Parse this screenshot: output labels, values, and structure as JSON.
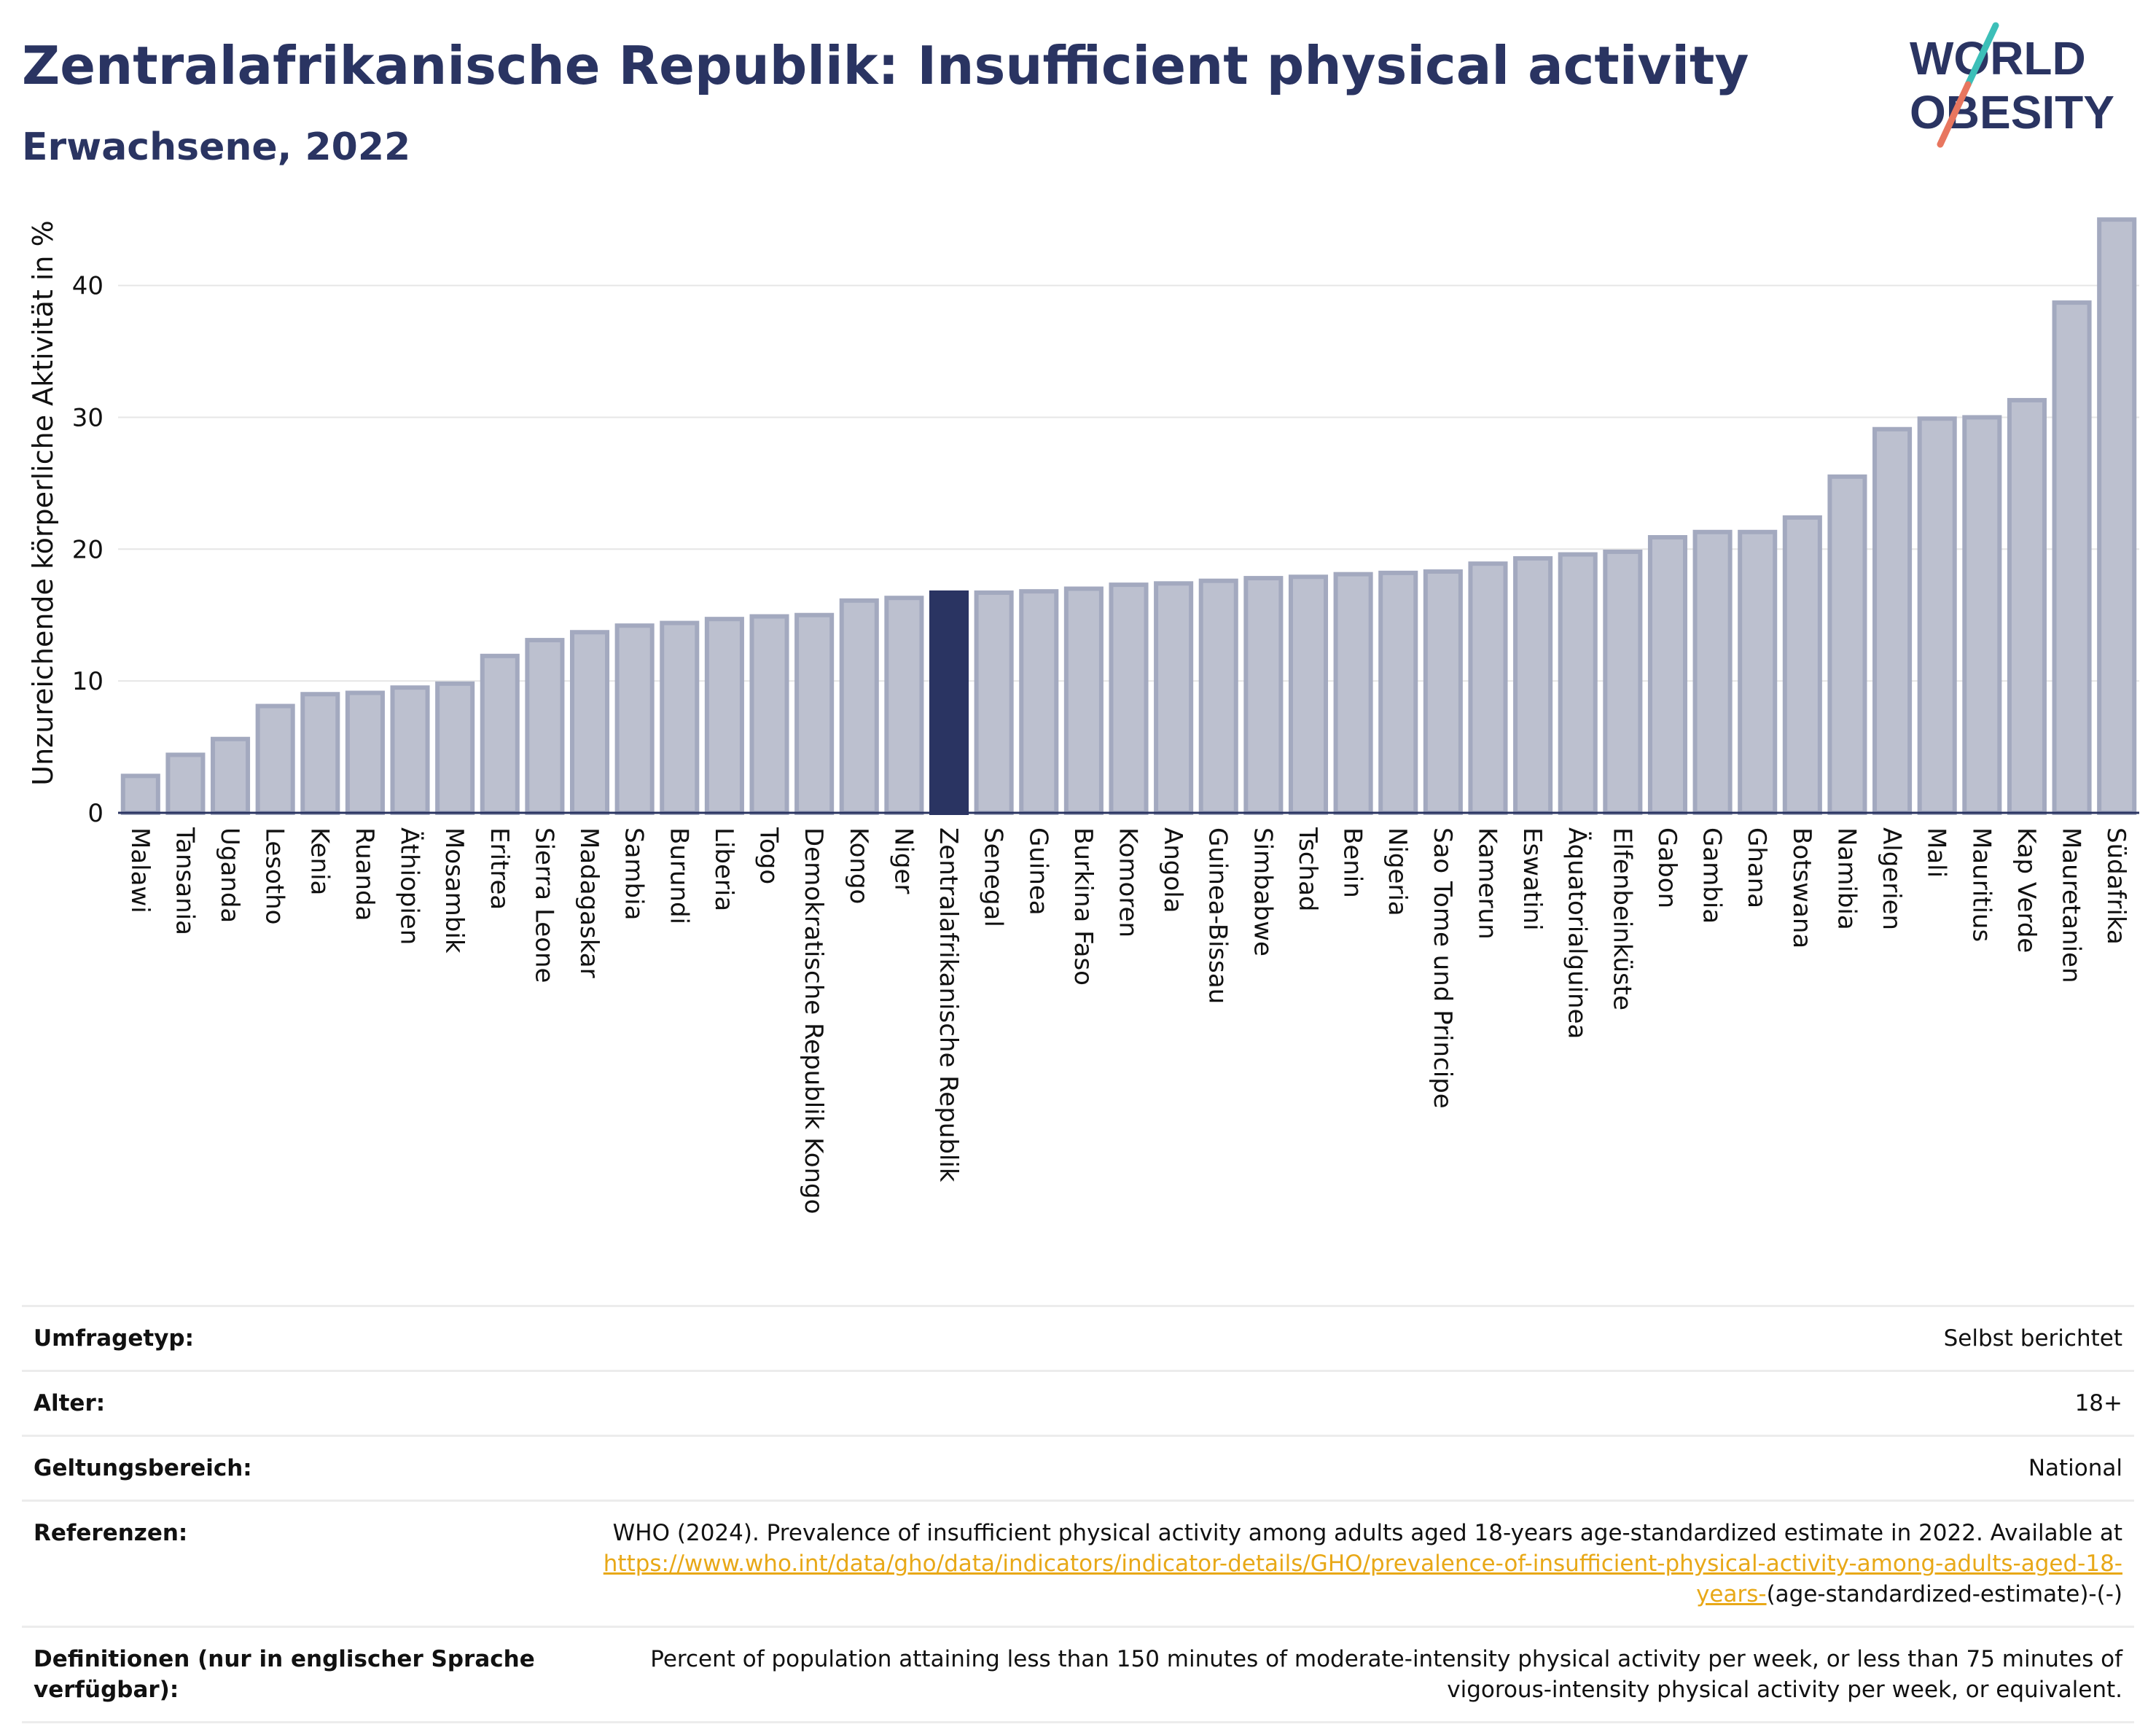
{
  "header": {
    "title": "Zentralafrikanische Republik: Insufficient physical activity",
    "subtitle": "Erwachsene, 2022"
  },
  "logo": {
    "line1": "WORLD",
    "line2": "OBESITY",
    "colors": {
      "text": "#2a3462",
      "slash_teal": "#3cbfb8",
      "slash_coral": "#e8765f"
    }
  },
  "colors": {
    "bar_fill": "#bcc0cf",
    "bar_stroke": "#a3a9bf",
    "highlight": "#2a3462",
    "grid": "#e6e6e6",
    "axis": "#2a3462",
    "link": "#e8a817"
  },
  "chart_data": {
    "type": "bar",
    "title": "",
    "xlabel": "",
    "ylabel": "Unzureichende körperliche Aktivität in %",
    "ylim": [
      0,
      47
    ],
    "yticks": [
      0,
      10,
      20,
      30,
      40
    ],
    "grid": true,
    "highlight": "Zentralafrikanische Republik",
    "categories": [
      "Malawi",
      "Tansania",
      "Uganda",
      "Lesotho",
      "Kenia",
      "Ruanda",
      "Äthiopien",
      "Mosambik",
      "Eritrea",
      "Sierra Leone",
      "Madagaskar",
      "Sambia",
      "Burundi",
      "Liberia",
      "Togo",
      "Demokratische Republik Kongo",
      "Kongo",
      "Niger",
      "Zentralafrikanische Republik",
      "Senegal",
      "Guinea",
      "Burkina Faso",
      "Komoren",
      "Angola",
      "Guinea-Bissau",
      "Simbabwe",
      "Tschad",
      "Benin",
      "Nigeria",
      "Sao Tome und Principe",
      "Kamerun",
      "Eswatini",
      "Äquatorialguinea",
      "Elfenbeinküste",
      "Gabon",
      "Gambia",
      "Ghana",
      "Botswana",
      "Namibia",
      "Algerien",
      "Mali",
      "Mauritius",
      "Kap Verde",
      "Mauretanien",
      "Südafrika"
    ],
    "values": [
      2.8,
      4.4,
      5.6,
      8.1,
      9.0,
      9.1,
      9.5,
      9.8,
      11.9,
      13.1,
      13.7,
      14.2,
      14.4,
      14.7,
      14.9,
      15.0,
      16.1,
      16.3,
      16.7,
      16.7,
      16.8,
      17.0,
      17.3,
      17.4,
      17.6,
      17.8,
      17.9,
      18.1,
      18.2,
      18.3,
      18.9,
      19.3,
      19.6,
      19.8,
      20.9,
      21.3,
      21.3,
      22.4,
      25.5,
      29.1,
      29.9,
      30.0,
      31.3,
      38.7,
      45.0
    ]
  },
  "meta": {
    "rows": [
      {
        "label": "Umfragetyp:",
        "value": "Selbst berichtet"
      },
      {
        "label": "Alter:",
        "value": "18+"
      },
      {
        "label": "Geltungsbereich:",
        "value": "National"
      },
      {
        "label": "Referenzen:",
        "value": "WHO (2024). Prevalence of insufficient physical activity among adults aged 18-years age-standardized estimate in 2022. Available at",
        "link": "https://www.who.int/data/gho/data/indicators/indicator-details/GHO/prevalence-of-insufficient-physical-activity-among-adults-aged-18-years-",
        "suffix": "(age-standardized-estimate)-(-)"
      },
      {
        "label": "Definitionen (nur in englischer Sprache verfügbar):",
        "value": "Percent of population attaining less than 150 minutes of moderate-intensity physical activity per week, or less than 75 minutes of vigorous-intensity physical activity per week, or equivalent."
      }
    ]
  }
}
